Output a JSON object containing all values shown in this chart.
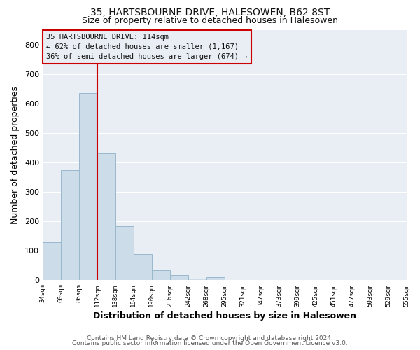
{
  "title": "35, HARTSBOURNE DRIVE, HALESOWEN, B62 8ST",
  "subtitle": "Size of property relative to detached houses in Halesowen",
  "xlabel": "Distribution of detached houses by size in Halesowen",
  "ylabel": "Number of detached properties",
  "bin_labels": [
    "34sqm",
    "60sqm",
    "86sqm",
    "112sqm",
    "138sqm",
    "164sqm",
    "190sqm",
    "216sqm",
    "242sqm",
    "268sqm",
    "295sqm",
    "321sqm",
    "347sqm",
    "373sqm",
    "399sqm",
    "425sqm",
    "451sqm",
    "477sqm",
    "503sqm",
    "529sqm",
    "555sqm"
  ],
  "bar_heights": [
    130,
    375,
    635,
    430,
    185,
    88,
    35,
    18,
    5,
    10,
    0,
    0,
    0,
    0,
    0,
    0,
    0,
    0,
    0,
    0
  ],
  "bar_color": "#ccdce8",
  "bar_edge_color": "#9ab8cc",
  "vline_x_index": 3,
  "vline_color": "#cc0000",
  "annotation_line1": "35 HARTSBOURNE DRIVE: 114sqm",
  "annotation_line2": "← 62% of detached houses are smaller (1,167)",
  "annotation_line3": "36% of semi-detached houses are larger (674) →",
  "annotation_box_color": "#cc0000",
  "ylim": [
    0,
    850
  ],
  "yticks": [
    0,
    100,
    200,
    300,
    400,
    500,
    600,
    700,
    800
  ],
  "footer_line1": "Contains HM Land Registry data © Crown copyright and database right 2024.",
  "footer_line2": "Contains public sector information licensed under the Open Government Licence v3.0.",
  "bg_color": "#ffffff",
  "plot_bg_color": "#e8eef4",
  "grid_color": "#ffffff",
  "title_fontsize": 10,
  "subtitle_fontsize": 9
}
